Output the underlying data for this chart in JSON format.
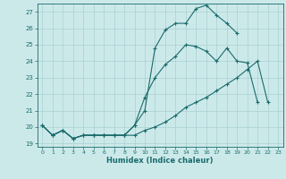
{
  "xlabel": "Humidex (Indice chaleur)",
  "xlim": [
    -0.5,
    23.5
  ],
  "ylim": [
    18.8,
    27.5
  ],
  "yticks": [
    19,
    20,
    21,
    22,
    23,
    24,
    25,
    26,
    27
  ],
  "xticks": [
    0,
    1,
    2,
    3,
    4,
    5,
    6,
    7,
    8,
    9,
    10,
    11,
    12,
    13,
    14,
    15,
    16,
    17,
    18,
    19,
    20,
    21,
    22,
    23
  ],
  "bg_color": "#cce9ea",
  "grid_color": "#aad0d2",
  "line_color": "#1a6b6b",
  "line1_x": [
    0,
    1,
    2,
    3,
    4,
    5,
    6,
    7,
    8,
    9,
    10,
    11,
    12,
    13,
    14,
    15,
    16,
    17,
    18,
    19
  ],
  "line1_y": [
    20.1,
    19.5,
    19.8,
    19.3,
    19.5,
    19.5,
    19.5,
    19.5,
    19.5,
    20.1,
    21.0,
    24.8,
    25.9,
    26.3,
    26.3,
    27.2,
    27.4,
    26.8,
    26.3,
    25.7
  ],
  "line2_x": [
    0,
    1,
    2,
    3,
    4,
    5,
    6,
    7,
    8,
    9,
    10,
    11,
    12,
    13,
    14,
    15,
    16,
    17,
    18,
    19,
    20,
    21
  ],
  "line2_y": [
    20.1,
    19.5,
    19.8,
    19.3,
    19.5,
    19.5,
    19.5,
    19.5,
    19.5,
    20.1,
    21.8,
    23.0,
    23.8,
    24.3,
    25.0,
    24.9,
    24.6,
    24.0,
    24.8,
    24.0,
    23.9,
    21.5
  ],
  "line3_x": [
    0,
    1,
    2,
    3,
    4,
    5,
    6,
    7,
    8,
    9,
    10,
    11,
    12,
    13,
    14,
    15,
    16,
    17,
    18,
    19,
    20,
    21,
    22
  ],
  "line3_y": [
    20.1,
    19.5,
    19.8,
    19.3,
    19.5,
    19.5,
    19.5,
    19.5,
    19.5,
    19.5,
    19.8,
    20.0,
    20.3,
    20.7,
    21.2,
    21.5,
    21.8,
    22.2,
    22.6,
    23.0,
    23.5,
    24.0,
    21.5
  ]
}
